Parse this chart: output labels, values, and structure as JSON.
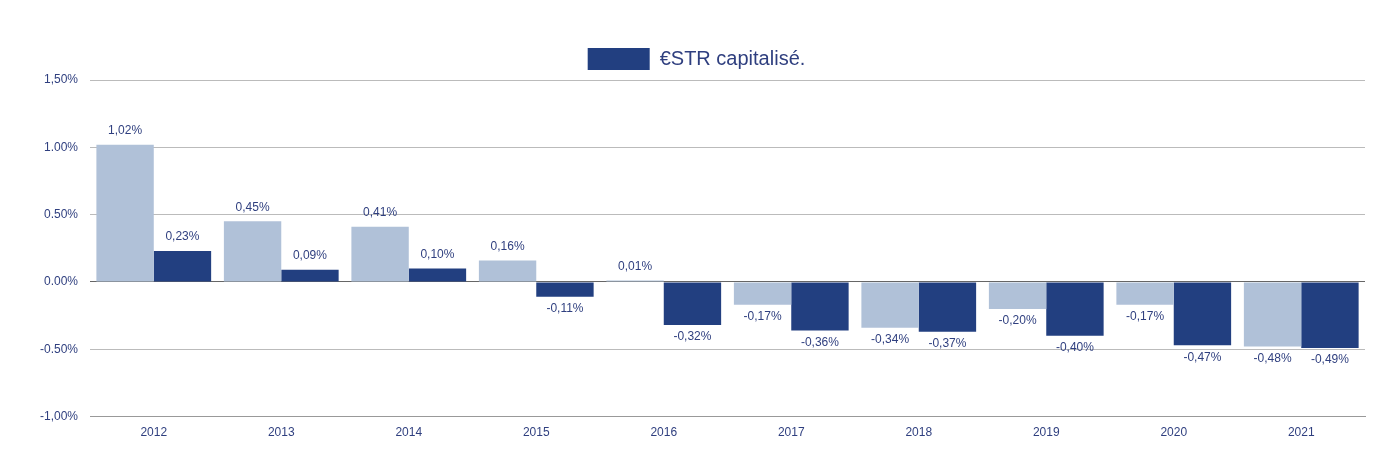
{
  "chart_data": {
    "type": "bar",
    "categories": [
      "2012",
      "2013",
      "2014",
      "2015",
      "2016",
      "2017",
      "2018",
      "2019",
      "2020",
      "2021"
    ],
    "series": [
      {
        "color": "#b0c1d8",
        "values": [
          1.02,
          0.45,
          0.41,
          0.16,
          0.01,
          -0.17,
          -0.34,
          -0.2,
          -0.17,
          -0.48
        ],
        "value_labels": [
          "1,02%",
          "0,45%",
          "0,41%",
          "0,16%",
          "0,01%",
          "-0,17%",
          "-0,34%",
          "-0,20%",
          "-0,17%",
          "-0,48%"
        ]
      },
      {
        "name": "€STR capitalisé.",
        "color": "#223f80",
        "values": [
          0.23,
          0.09,
          0.1,
          -0.11,
          -0.32,
          -0.36,
          -0.37,
          -0.4,
          -0.47,
          -0.49
        ],
        "value_labels": [
          "0,23%",
          "0,09%",
          "0,10%",
          "-0,11%",
          "-0,32%",
          "-0,36%",
          "-0,37%",
          "-0,40%",
          "-0,47%",
          "-0,49%"
        ]
      }
    ],
    "ylim": [
      -1,
      1.5
    ],
    "yticks": [
      {
        "value": -1,
        "label": "-1,00%"
      },
      {
        "value": -0.5,
        "label": "-0.50%"
      },
      {
        "value": 0,
        "label": "0.00%"
      },
      {
        "value": 0.5,
        "label": "0.50%"
      },
      {
        "value": 1,
        "label": "1.00%"
      },
      {
        "value": 1.5,
        "label": "1,50%"
      }
    ],
    "grid": "y",
    "legend": "top"
  }
}
